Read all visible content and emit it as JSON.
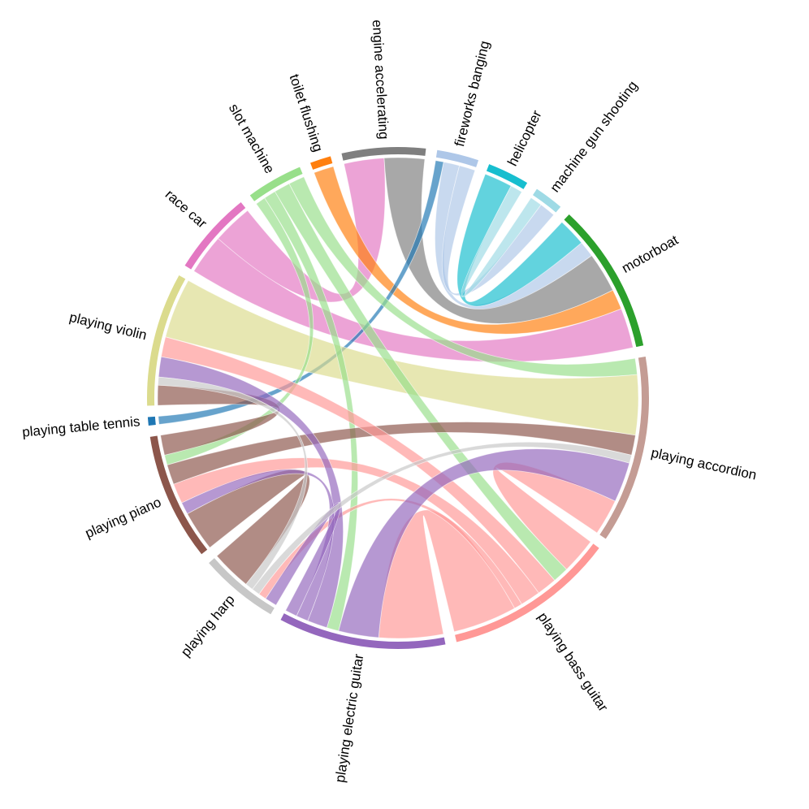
{
  "chart_data": {
    "type": "chord",
    "nodes": [
      {
        "name": "engine accelerating",
        "color": "#7f7f7f"
      },
      {
        "name": "fireworks banging",
        "color": "#aec7e8"
      },
      {
        "name": "helicopter",
        "color": "#17becf"
      },
      {
        "name": "machine gun shooting",
        "color": "#9edae5"
      },
      {
        "name": "motorboat",
        "color": "#2ca02c"
      },
      {
        "name": "playing accordion",
        "color": "#c49c94"
      },
      {
        "name": "playing bass guitar",
        "color": "#ff9896"
      },
      {
        "name": "playing electric guitar",
        "color": "#9467bd"
      },
      {
        "name": "playing harp",
        "color": "#c7c7c7"
      },
      {
        "name": "playing piano",
        "color": "#8c564b"
      },
      {
        "name": "playing table tennis",
        "color": "#1f77b4"
      },
      {
        "name": "playing violin",
        "color": "#dbdb8d"
      },
      {
        "name": "race car",
        "color": "#e377c2"
      },
      {
        "name": "slot machine",
        "color": "#98df8a"
      },
      {
        "name": "toilet flushing",
        "color": "#ff7f0e"
      }
    ],
    "links": [
      {
        "source": "race car",
        "target": "motorboat",
        "value": 2
      },
      {
        "source": "race car",
        "target": "engine accelerating",
        "value": 2
      },
      {
        "source": "engine accelerating",
        "target": "motorboat",
        "value": 2
      },
      {
        "source": "fireworks banging",
        "target": "motorboat",
        "value": 0.8
      },
      {
        "source": "fireworks banging",
        "target": "machine gun shooting",
        "value": 0.8
      },
      {
        "source": "helicopter",
        "target": "motorboat",
        "value": 1.4
      },
      {
        "source": "machine gun shooting",
        "target": "helicopter",
        "value": 0.6
      },
      {
        "source": "toilet flushing",
        "target": "motorboat",
        "value": 1
      },
      {
        "source": "playing table tennis",
        "target": "fireworks banging",
        "value": 0.4
      },
      {
        "source": "playing violin",
        "target": "playing accordion",
        "value": 3
      },
      {
        "source": "slot machine",
        "target": "playing accordion",
        "value": 0.8
      },
      {
        "source": "slot machine",
        "target": "playing bass guitar",
        "value": 0.8
      },
      {
        "source": "slot machine",
        "target": "playing electric guitar",
        "value": 0.6
      },
      {
        "source": "slot machine",
        "target": "playing piano",
        "value": 0.5
      },
      {
        "source": "playing piano",
        "target": "playing accordion",
        "value": 1
      },
      {
        "source": "playing piano",
        "target": "playing violin",
        "value": 1
      },
      {
        "source": "playing piano",
        "target": "playing harp",
        "value": 2
      },
      {
        "source": "playing bass guitar",
        "target": "playing accordion",
        "value": 1.8
      },
      {
        "source": "playing bass guitar",
        "target": "playing electric guitar",
        "value": 3.2
      },
      {
        "source": "playing bass guitar",
        "target": "playing violin",
        "value": 1
      },
      {
        "source": "playing bass guitar",
        "target": "playing piano",
        "value": 1
      },
      {
        "source": "playing bass guitar",
        "target": "playing harp",
        "value": 0.4
      },
      {
        "source": "playing electric guitar",
        "target": "playing accordion",
        "value": 2
      },
      {
        "source": "playing electric guitar",
        "target": "playing violin",
        "value": 1
      },
      {
        "source": "playing electric guitar",
        "target": "playing piano",
        "value": 0.6
      },
      {
        "source": "playing electric guitar",
        "target": "playing harp",
        "value": 0.6
      },
      {
        "source": "playing harp",
        "target": "playing violin",
        "value": 0.4
      },
      {
        "source": "playing harp",
        "target": "playing accordion",
        "value": 0.4
      }
    ]
  }
}
